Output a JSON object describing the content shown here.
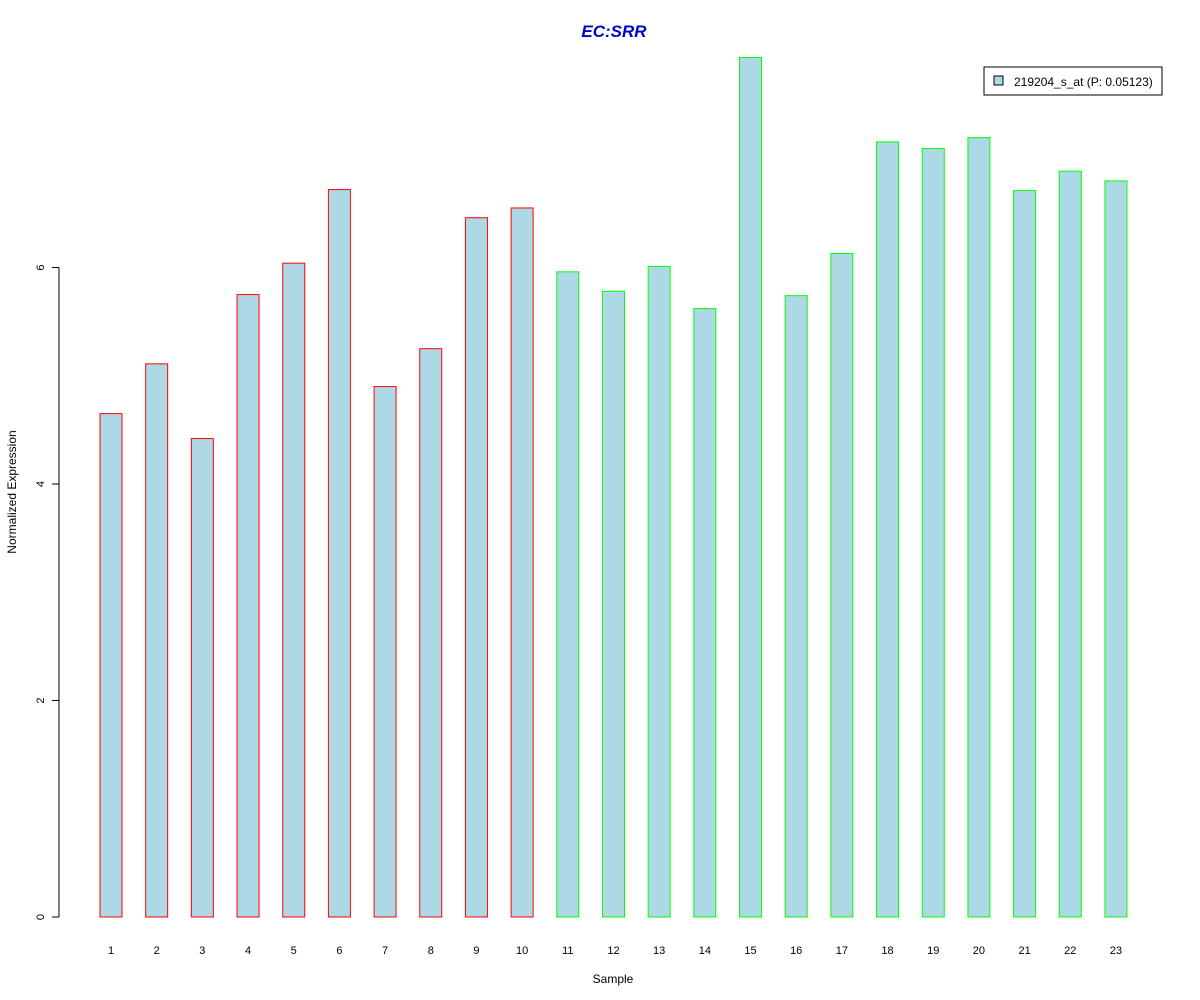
{
  "chart_data": {
    "type": "bar",
    "title": "EC:SRR",
    "xlabel": "Sample",
    "ylabel": "Normalized Expression",
    "categories": [
      "1",
      "2",
      "3",
      "4",
      "5",
      "6",
      "7",
      "8",
      "9",
      "10",
      "11",
      "12",
      "13",
      "14",
      "15",
      "16",
      "17",
      "18",
      "19",
      "20",
      "21",
      "22",
      "23"
    ],
    "series": [
      {
        "name": "219204_s_at (P: 0.05123)",
        "values": [
          4.65,
          5.11,
          4.42,
          5.75,
          6.04,
          6.72,
          4.9,
          5.25,
          6.46,
          6.55,
          5.96,
          5.78,
          6.01,
          5.62,
          7.94,
          5.74,
          6.13,
          7.16,
          7.1,
          7.2,
          6.71,
          6.89,
          6.8
        ],
        "fill": "#ADD8E6"
      }
    ],
    "bar_border_colors": [
      "#FF0000",
      "#FF0000",
      "#FF0000",
      "#FF0000",
      "#FF0000",
      "#FF0000",
      "#FF0000",
      "#FF0000",
      "#FF0000",
      "#FF0000",
      "#00FF00",
      "#00FF00",
      "#00FF00",
      "#00FF00",
      "#00FF00",
      "#00FF00",
      "#00FF00",
      "#00FF00",
      "#00FF00",
      "#00FF00",
      "#00FF00",
      "#00FF00",
      "#00FF00"
    ],
    "ylim": [
      0,
      8
    ],
    "yticks": [
      0,
      2,
      4,
      6
    ],
    "grid": false,
    "legend_position": "top-right",
    "title_color": "#0000CD"
  }
}
